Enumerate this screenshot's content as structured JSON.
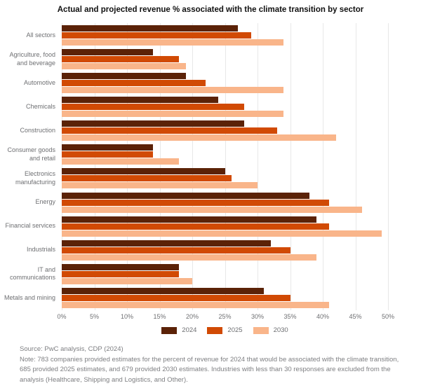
{
  "title": "Actual and projected revenue % associated with the climate transition by sector",
  "chart_data": {
    "type": "bar",
    "orientation": "horizontal",
    "title": "Actual and projected revenue % associated with the climate transition by sector",
    "xlabel": "",
    "ylabel": "",
    "xlim": [
      0,
      50
    ],
    "x_tick_values": [
      0,
      5,
      10,
      15,
      20,
      25,
      30,
      35,
      40,
      45,
      50
    ],
    "x_tick_labels": [
      "0%",
      "5%",
      "10%",
      "15%",
      "20%",
      "25%",
      "30%",
      "35%",
      "40%",
      "45%",
      "50%"
    ],
    "grid": "vertical",
    "legend_position": "bottom",
    "categories": [
      "All sectors",
      "Agriculture, food\nand beverage",
      "Automotive",
      "Chemicals",
      "Construction",
      "Consumer goods\nand retail",
      "Electronics\nmanufacturing",
      "Energy",
      "Financial services",
      "Industrials",
      "IT and\ncommunications",
      "Metals and mining"
    ],
    "series": [
      {
        "name": "2024",
        "color": "#5b2207",
        "values": [
          27,
          14,
          19,
          24,
          28,
          14,
          25,
          38,
          39,
          32,
          18,
          31
        ]
      },
      {
        "name": "2025",
        "color": "#d14a04",
        "values": [
          29,
          18,
          22,
          28,
          33,
          14,
          26,
          41,
          41,
          35,
          18,
          35
        ]
      },
      {
        "name": "2030",
        "color": "#f9b58a",
        "values": [
          34,
          19,
          34,
          34,
          42,
          18,
          30,
          46,
          49,
          39,
          20,
          41
        ]
      }
    ]
  },
  "footer": {
    "source": "Source: PwC analysis, CDP (2024)",
    "note": "Note: 783 companies provided estimates for the percent of revenue for 2024 that would be associated with the climate transition, 685 provided 2025 estimates, and 679 provided 2030 estimates. Industries with less than 30 responses are excluded from the analysis (Healthcare, Shipping and Logistics, and Other)."
  }
}
